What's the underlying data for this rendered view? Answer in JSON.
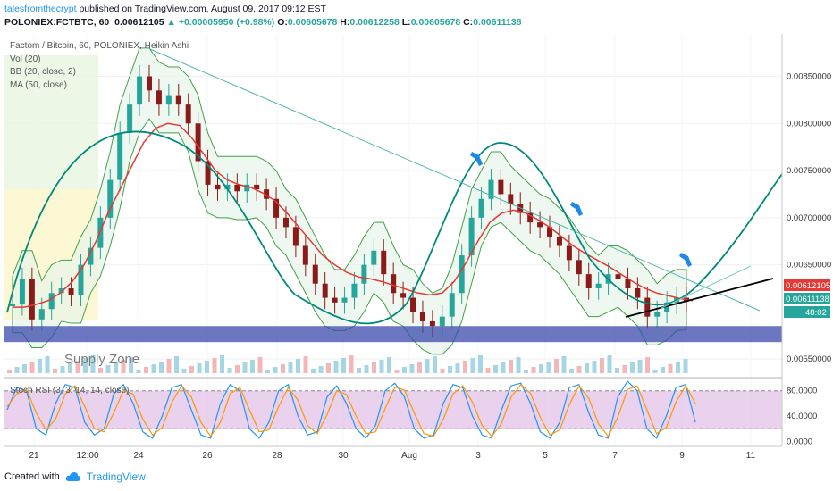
{
  "header": {
    "author": "talesfromthecrypt",
    "published_text": "published on TradingView.com, August 09, 2017 09:12 EST",
    "symbol": "POLONIEX:FCTBTC, 60",
    "price": "0.00612105",
    "change_arrow": "▲",
    "change": "+0.00005950 (+0.98%)",
    "o_label": "O:",
    "o_value": "0.00605678",
    "h_label": "H:",
    "h_value": "0.00612258",
    "l_label": "L:",
    "l_value": "0.00605678",
    "c_label": "C:",
    "c_value": "0.00611138"
  },
  "legend": {
    "title": "Factom / Bitcoin, 60, POLONIEX, Heikin Ashi",
    "vol": "Vol (20)",
    "bb": "BB (20, close, 2)",
    "ma": "MA (50, close)"
  },
  "annotation": {
    "supply_zone": "Supply Zone"
  },
  "badges": {
    "last_price": "0.00612105",
    "close_price": "0.00611138",
    "countdown": "48:02"
  },
  "footer": {
    "created_with": "Created with",
    "brand": "TradingView"
  },
  "colors": {
    "candle_up": "#26a69a",
    "candle_down": "#8b1a1a",
    "ma": "#e53935",
    "bb_line": "#43a047",
    "bb_fill": "#e8f5e9",
    "zone": "#3949ab",
    "stoch_k": "#2196f3",
    "stoch_d": "#ff9800",
    "stoch_band": "#e1bee7",
    "arc": "#00897b",
    "wedge": "#000000"
  },
  "chart_data": [
    {
      "type": "candlestick",
      "title": "Factom / Bitcoin, 60, POLONIEX, Heikin Ashi",
      "x_tick_labels": [
        "21",
        "12:00",
        "24",
        "26",
        "28",
        "30",
        "Aug",
        "3",
        "5",
        "7",
        "9",
        "11"
      ],
      "y_tick_labels": [
        "0.00850000",
        "0.00800000",
        "0.00750000",
        "0.00700000",
        "0.00650000",
        "0.00550000"
      ],
      "y_ticks": [
        0.0085,
        0.008,
        0.0075,
        0.007,
        0.0065,
        0.0055
      ],
      "ylim": [
        0.00535,
        0.00895
      ],
      "supply_zone": [
        0.00568,
        0.00585
      ],
      "series": [
        {
          "close": [
            0.00608,
            0.00635,
            0.00592,
            0.00603,
            0.0062,
            0.00625,
            0.00618,
            0.0065,
            0.00668,
            0.007,
            0.0074,
            0.0079,
            0.0082,
            0.0085,
            0.00835,
            0.0082,
            0.0083,
            0.0082,
            0.008,
            0.0076,
            0.00735,
            0.0073,
            0.00735,
            0.00728,
            0.00735,
            0.0073,
            0.0072,
            0.007,
            0.0069,
            0.0067,
            0.0065,
            0.0063,
            0.00615,
            0.0061,
            0.00615,
            0.0063,
            0.0065,
            0.00665,
            0.0064,
            0.0062,
            0.00615,
            0.006,
            0.0059,
            0.00585,
            0.00595,
            0.0062,
            0.0066,
            0.007,
            0.0072,
            0.0074,
            0.00725,
            0.00715,
            0.00705,
            0.00695,
            0.0069,
            0.0068,
            0.0067,
            0.00655,
            0.0064,
            0.00625,
            0.0063,
            0.0064,
            0.00635,
            0.00625,
            0.00615,
            0.00595,
            0.006,
            0.0061,
            0.00615,
            0.00611
          ]
        },
        {
          "name": "MA (50, close)",
          "values": [
            0.00605,
            0.00605,
            0.00608,
            0.00612,
            0.0062,
            0.00632,
            0.0065,
            0.00675,
            0.00705,
            0.0073,
            0.00755,
            0.0078,
            0.00795,
            0.008,
            0.00798,
            0.00785,
            0.00768,
            0.0075,
            0.0074,
            0.00735,
            0.00732,
            0.00726,
            0.00718,
            0.00705,
            0.0069,
            0.00675,
            0.0066,
            0.0065,
            0.00642,
            0.00637,
            0.00635,
            0.00632,
            0.00628,
            0.00624,
            0.0062,
            0.00618,
            0.0062,
            0.00632,
            0.00652,
            0.00675,
            0.00695,
            0.00705,
            0.00708,
            0.00705,
            0.00698,
            0.0069,
            0.0068,
            0.0067,
            0.00662,
            0.00655,
            0.00648,
            0.0064,
            0.00632,
            0.00625,
            0.0062,
            0.00617,
            0.00614,
            0.00612
          ]
        }
      ]
    },
    {
      "type": "line",
      "title": "Stoch RSI (3, 3, 14, 14, close)",
      "y_tick_labels": [
        "80.0000",
        "40.0000",
        "0.0000"
      ],
      "y_ticks": [
        80,
        40,
        0
      ],
      "ylim": [
        -8,
        98
      ],
      "bands": [
        20,
        80
      ],
      "series": [
        {
          "values": [
            50,
            85,
            80,
            20,
            10,
            60,
            90,
            85,
            30,
            10,
            20,
            75,
            90,
            60,
            15,
            5,
            40,
            85,
            90,
            50,
            10,
            5,
            60,
            90,
            80,
            20,
            5,
            30,
            80,
            90,
            40,
            10,
            15,
            70,
            88,
            60,
            20,
            5,
            25,
            80,
            92,
            70,
            20,
            5,
            10,
            60,
            90,
            85,
            40,
            10,
            5,
            50,
            88,
            92,
            60,
            15,
            5,
            30,
            85,
            90,
            45,
            10,
            5,
            70,
            95,
            80,
            20,
            5,
            40,
            85,
            90,
            30
          ]
        },
        {
          "values": [
            55,
            75,
            82,
            45,
            18,
            35,
            75,
            88,
            55,
            20,
            15,
            45,
            80,
            75,
            35,
            10,
            22,
            62,
            88,
            70,
            30,
            8,
            30,
            75,
            85,
            50,
            15,
            18,
            55,
            85,
            65,
            25,
            12,
            42,
            80,
            74,
            40,
            12,
            15,
            52,
            86,
            81,
            45,
            12,
            8,
            35,
            75,
            88,
            62,
            25,
            8,
            28,
            70,
            90,
            76,
            38,
            10,
            18,
            58,
            88,
            68,
            28,
            8,
            38,
            82,
            88,
            50,
            12,
            22,
            62,
            88,
            60
          ]
        }
      ]
    }
  ]
}
